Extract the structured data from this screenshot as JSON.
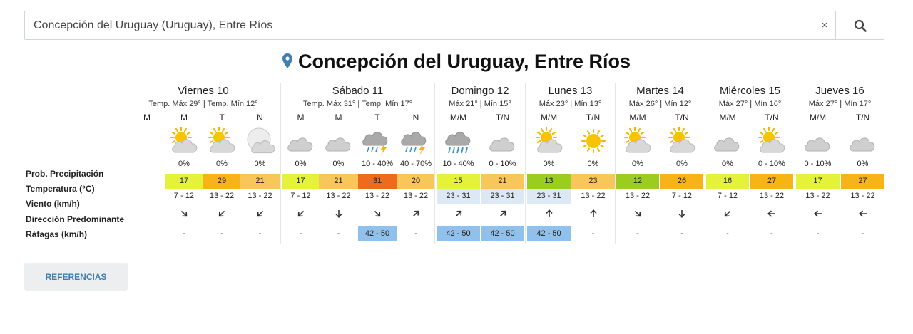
{
  "search": {
    "value": "Concepción del Uruguay (Uruguay), Entre Ríos",
    "clear_label": "×",
    "icon": "search-icon"
  },
  "location": {
    "title": "Concepción del Uruguay, Entre Ríos",
    "icon": "map-pin-icon"
  },
  "row_labels": [
    "Prob. Precipitación",
    "Temperatura (°C)",
    "Viento (km/h)",
    "Dirección Predominante",
    "Ráfagas (km/h)"
  ],
  "references_label": "REFERENCIAS",
  "colors": {
    "accent": "#3f7fb0",
    "temp_yellow": "#e4f23a",
    "temp_orange": "#f6b418",
    "temp_light_orange": "#f8c75a",
    "temp_red": "#f06a1b",
    "temp_green": "#9acd1d",
    "wind_highlight": "#dce9f4",
    "gust_highlight": "#8fc1ec"
  },
  "days": [
    {
      "name": "Viernes 10",
      "sub": "Temp. Máx 29° | Temp. Mín 12°",
      "cols": [
        {
          "period": "M",
          "icon": "none",
          "prob": "",
          "temp": "",
          "tempColor": "",
          "wind": "",
          "windHl": false,
          "dir": null,
          "gust": "",
          "gustHl": false
        },
        {
          "period": "M",
          "icon": "sun-cloud-icon",
          "prob": "0%",
          "temp": "17",
          "tempColor": "#e4f23a",
          "wind": "7 - 12",
          "windHl": false,
          "dir": "arrow-southeast-icon",
          "gust": "-",
          "gustHl": false
        },
        {
          "period": "T",
          "icon": "sun-cloud-icon",
          "prob": "0%",
          "temp": "29",
          "tempColor": "#f6b418",
          "wind": "13 - 22",
          "windHl": false,
          "dir": "arrow-southwest-icon",
          "gust": "-",
          "gustHl": false
        },
        {
          "period": "N",
          "icon": "moon-cloud-icon",
          "prob": "0%",
          "temp": "21",
          "tempColor": "#f8c75a",
          "wind": "13 - 22",
          "windHl": false,
          "dir": "arrow-southwest-icon",
          "gust": "-",
          "gustHl": false
        }
      ]
    },
    {
      "name": "Sábado 11",
      "sub": "Temp. Máx 31° | Temp. Mín 17°",
      "cols": [
        {
          "period": "M",
          "icon": "cloud-icon",
          "prob": "0%",
          "temp": "17",
          "tempColor": "#e4f23a",
          "wind": "7 - 12",
          "windHl": false,
          "dir": "arrow-southwest-icon",
          "gust": "-",
          "gustHl": false
        },
        {
          "period": "M",
          "icon": "cloud-icon",
          "prob": "0%",
          "temp": "21",
          "tempColor": "#f8c75a",
          "wind": "13 - 22",
          "windHl": false,
          "dir": "arrow-south-icon",
          "gust": "-",
          "gustHl": false
        },
        {
          "period": "T",
          "icon": "storm-icon",
          "prob": "10 - 40%",
          "temp": "31",
          "tempColor": "#f06a1b",
          "wind": "13 - 22",
          "windHl": false,
          "dir": "arrow-southeast-icon",
          "gust": "42 - 50",
          "gustHl": true
        },
        {
          "period": "N",
          "icon": "storm-icon",
          "prob": "40 - 70%",
          "temp": "20",
          "tempColor": "#f8c75a",
          "wind": "13 - 22",
          "windHl": false,
          "dir": "arrow-northeast-icon",
          "gust": "-",
          "gustHl": false
        }
      ]
    },
    {
      "name": "Domingo 12",
      "sub": "Máx 21° | Mín 15°",
      "cols": [
        {
          "period": "M/M",
          "icon": "rain-icon",
          "prob": "10 - 40%",
          "temp": "15",
          "tempColor": "#e4f23a",
          "wind": "23 - 31",
          "windHl": true,
          "dir": "arrow-northeast-icon",
          "gust": "42 - 50",
          "gustHl": true
        },
        {
          "period": "T/N",
          "icon": "cloud-icon",
          "prob": "0 - 10%",
          "temp": "21",
          "tempColor": "#f8c75a",
          "wind": "23 - 31",
          "windHl": true,
          "dir": "arrow-northeast-icon",
          "gust": "42 - 50",
          "gustHl": true
        }
      ]
    },
    {
      "name": "Lunes 13",
      "sub": "Máx 23° | Mín 13°",
      "cols": [
        {
          "period": "M/M",
          "icon": "sun-cloud-icon",
          "prob": "0%",
          "temp": "13",
          "tempColor": "#9acd1d",
          "wind": "23 - 31",
          "windHl": true,
          "dir": "arrow-north-icon",
          "gust": "42 - 50",
          "gustHl": true
        },
        {
          "period": "T/N",
          "icon": "sun-icon",
          "prob": "0%",
          "temp": "23",
          "tempColor": "#f8c75a",
          "wind": "13 - 22",
          "windHl": false,
          "dir": "arrow-north-icon",
          "gust": "-",
          "gustHl": false
        }
      ]
    },
    {
      "name": "Martes 14",
      "sub": "Máx 26° | Mín 12°",
      "cols": [
        {
          "period": "M/M",
          "icon": "sun-cloud-icon",
          "prob": "0%",
          "temp": "12",
          "tempColor": "#9acd1d",
          "wind": "13 - 22",
          "windHl": false,
          "dir": "arrow-southeast-icon",
          "gust": "-",
          "gustHl": false
        },
        {
          "period": "T/N",
          "icon": "sun-cloud-icon",
          "prob": "0%",
          "temp": "26",
          "tempColor": "#f6b418",
          "wind": "7 - 12",
          "windHl": false,
          "dir": "arrow-south-icon",
          "gust": "-",
          "gustHl": false
        }
      ]
    },
    {
      "name": "Miércoles 15",
      "sub": "Máx 27° | Mín 16°",
      "cols": [
        {
          "period": "M/M",
          "icon": "cloud-icon",
          "prob": "0%",
          "temp": "16",
          "tempColor": "#e4f23a",
          "wind": "7 - 12",
          "windHl": false,
          "dir": "arrow-southwest-icon",
          "gust": "-",
          "gustHl": false
        },
        {
          "period": "T/N",
          "icon": "sun-cloud-icon",
          "prob": "0 - 10%",
          "temp": "27",
          "tempColor": "#f6b418",
          "wind": "13 - 22",
          "windHl": false,
          "dir": "arrow-west-icon",
          "gust": "-",
          "gustHl": false
        }
      ]
    },
    {
      "name": "Jueves 16",
      "sub": "Máx 27° | Mín 17°",
      "cols": [
        {
          "period": "M/M",
          "icon": "cloud-icon",
          "prob": "0 - 10%",
          "temp": "17",
          "tempColor": "#e4f23a",
          "wind": "13 - 22",
          "windHl": false,
          "dir": "arrow-west-icon",
          "gust": "-",
          "gustHl": false
        },
        {
          "period": "T/N",
          "icon": "cloud-icon",
          "prob": "0%",
          "temp": "27",
          "tempColor": "#f6b418",
          "wind": "13 - 22",
          "windHl": false,
          "dir": "arrow-west-icon",
          "gust": "-",
          "gustHl": false
        }
      ]
    }
  ]
}
